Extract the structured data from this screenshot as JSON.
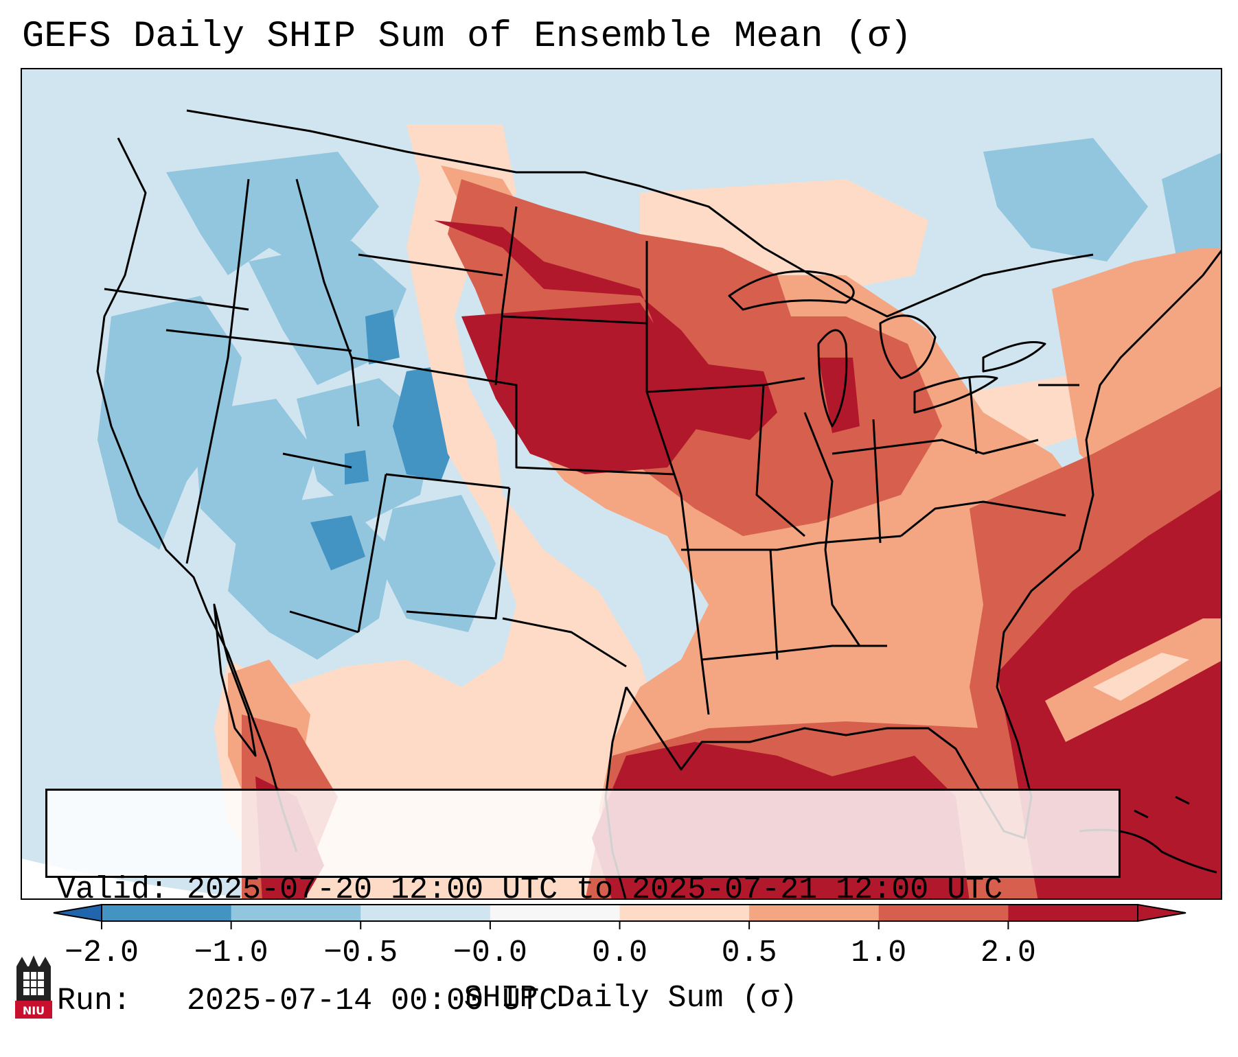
{
  "title": "GEFS Daily SHIP Sum of Ensemble Mean (σ)",
  "info": {
    "valid_label": "Valid:",
    "valid_value": "2025-07-20 12:00 UTC to 2025-07-21 12:00 UTC",
    "run_label": "Run:",
    "run_value": "2025-07-14 00:00 UTC"
  },
  "colorbar": {
    "label": "SHIP Daily Sum (σ)",
    "tick_labels": [
      "−2.0",
      "−1.0",
      "−0.5",
      "−0.0",
      "0.0",
      "0.5",
      "1.0",
      "2.0"
    ],
    "bins": [
      "#4393c3",
      "#92c5de",
      "#d1e5f0",
      "#f7f7f7",
      "#fddbc7",
      "#f4a582",
      "#d6604d",
      "#b2182b"
    ],
    "under_color": "#2166ac",
    "over_color": "#b2182b"
  },
  "logo": {
    "text": "NIU",
    "icon": "niu-building-logo-icon"
  },
  "map": {
    "region": "Contiguous United States",
    "field": "SHIP daily sum, ensemble mean"
  }
}
